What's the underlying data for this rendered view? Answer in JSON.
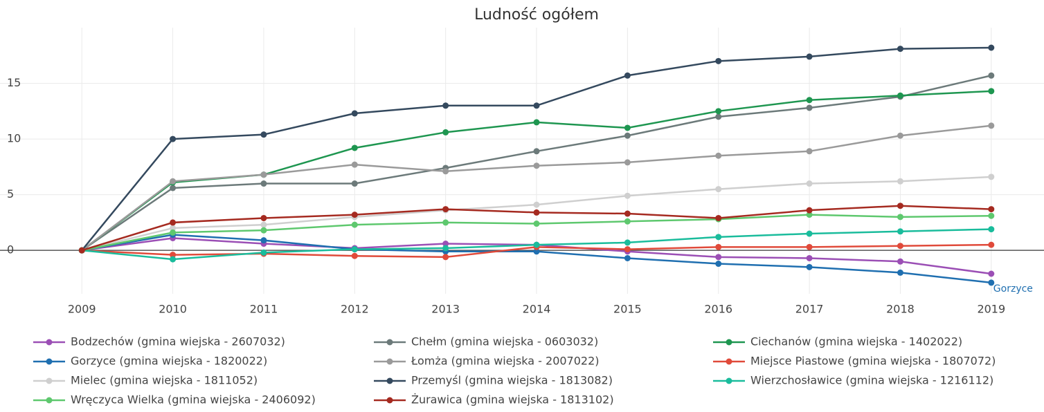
{
  "chart_data": {
    "type": "line",
    "title": "Ludność ogółem",
    "x": [
      2009,
      2010,
      2011,
      2012,
      2013,
      2014,
      2015,
      2016,
      2017,
      2018,
      2019
    ],
    "xlim": [
      2008.1,
      2019.58
    ],
    "xticks": [
      2009,
      2010,
      2011,
      2012,
      2013,
      2014,
      2015,
      2016,
      2017,
      2018,
      2019
    ],
    "ylim": [
      -3.9,
      20
    ],
    "yticks": [
      0,
      5,
      10,
      15
    ],
    "grid": true,
    "annotation": "Gorzyce",
    "series": [
      {
        "name": "Bodzechów (gmina wiejska - 2607032)",
        "color": "#9b4fb5",
        "values": [
          0,
          1.1,
          0.6,
          0.2,
          0.6,
          0.5,
          -0.1,
          -0.6,
          -0.7,
          -1.0,
          -2.1
        ]
      },
      {
        "name": "Chełm (gmina wiejska - 0603032)",
        "color": "#6c7a7a",
        "values": [
          0,
          5.6,
          6.0,
          6.0,
          7.4,
          8.9,
          10.3,
          12.0,
          12.8,
          13.8,
          15.7
        ]
      },
      {
        "name": "Ciechanów (gmina wiejska - 1402022)",
        "color": "#1e9650",
        "values": [
          0,
          6.1,
          6.8,
          9.2,
          10.6,
          11.5,
          11.0,
          12.5,
          13.5,
          13.9,
          14.3
        ]
      },
      {
        "name": "Gorzyce (gmina wiejska - 1820022)",
        "color": "#1f6fb0",
        "values": [
          0,
          1.4,
          0.9,
          0.1,
          -0.1,
          -0.1,
          -0.7,
          -1.2,
          -1.5,
          -2.0,
          -2.9
        ]
      },
      {
        "name": "Łomża (gmina wiejska - 2007022)",
        "color": "#9a9a9a",
        "values": [
          0,
          6.2,
          6.8,
          7.7,
          7.1,
          7.6,
          7.9,
          8.5,
          8.9,
          10.3,
          11.2
        ]
      },
      {
        "name": "Miejsce Piastowe (gmina wiejska - 1807072)",
        "color": "#e04a3a",
        "values": [
          0,
          -0.4,
          -0.3,
          -0.5,
          -0.6,
          0.3,
          0.1,
          0.3,
          0.3,
          0.4,
          0.5
        ]
      },
      {
        "name": "Mielec (gmina wiejska - 1811052)",
        "color": "#cfcfcf",
        "values": [
          0,
          2.0,
          2.3,
          3.0,
          3.6,
          4.1,
          4.9,
          5.5,
          6.0,
          6.2,
          6.6
        ]
      },
      {
        "name": "Przemyśl (gmina wiejska - 1813082)",
        "color": "#34495e",
        "values": [
          0,
          10.0,
          10.4,
          12.3,
          13.0,
          13.0,
          15.7,
          17.0,
          17.4,
          18.1,
          18.2
        ]
      },
      {
        "name": "Wierzchosławice (gmina wiejska - 1216112)",
        "color": "#1abc9c",
        "values": [
          0,
          -0.8,
          -0.2,
          0.1,
          0.2,
          0.5,
          0.7,
          1.2,
          1.5,
          1.7,
          1.9
        ]
      },
      {
        "name": "Wręczyca Wielka (gmina wiejska - 2406092)",
        "color": "#5ec86e",
        "values": [
          0,
          1.6,
          1.8,
          2.3,
          2.5,
          2.4,
          2.6,
          2.8,
          3.2,
          3.0,
          3.1
        ]
      },
      {
        "name": "Żurawica (gmina wiejska - 1813102)",
        "color": "#a52a20",
        "values": [
          0,
          2.5,
          2.9,
          3.2,
          3.7,
          3.4,
          3.3,
          2.9,
          3.6,
          4.0,
          3.7
        ]
      }
    ]
  }
}
